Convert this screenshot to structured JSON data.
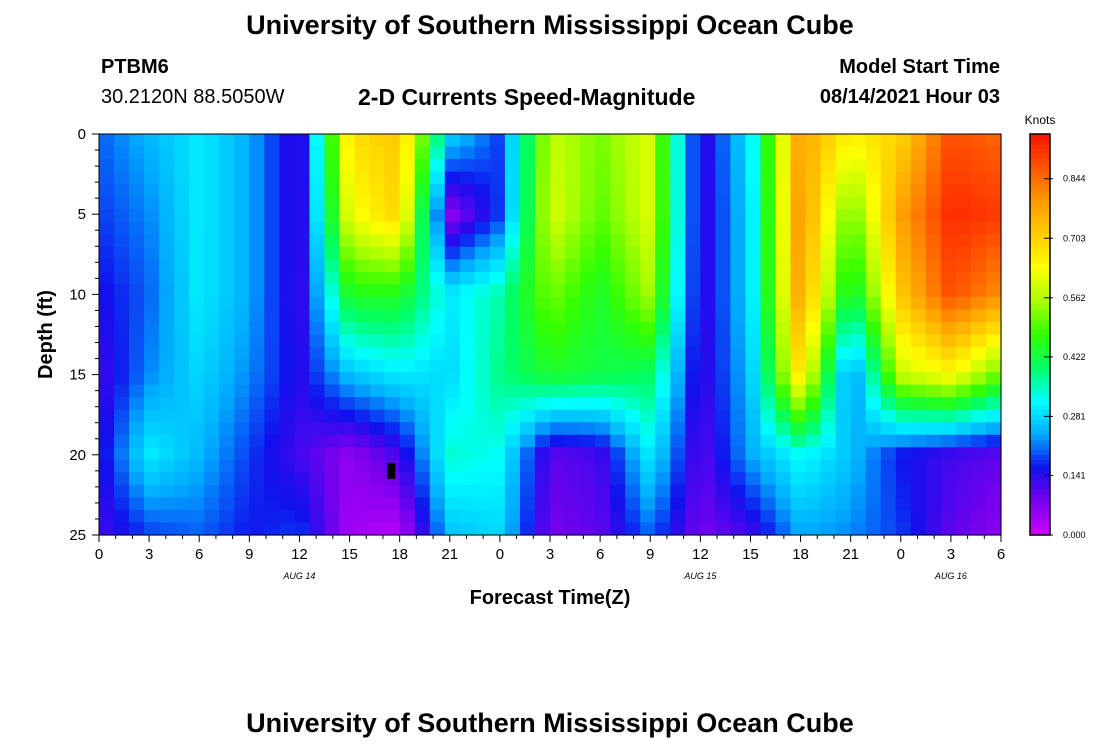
{
  "page": {
    "title_top": "University of Southern Mississippi Ocean Cube",
    "title_bottom": "University of Southern Mississippi Ocean Cube",
    "station_id": "PTBM6",
    "station_coords": "30.2120N  88.5050W",
    "plot_title": "2-D Currents Speed-Magnitude",
    "model_start_label": "Model Start Time",
    "model_start_value": "08/14/2021 Hour 03"
  },
  "colors": {
    "scale": [
      "#cc00ff",
      "#7a00ee",
      "#1010ee",
      "#00aaff",
      "#00ffff",
      "#00ff66",
      "#33ff00",
      "#aaff00",
      "#ffff00",
      "#ffcc00",
      "#ff9900",
      "#ff5500",
      "#ff1100"
    ],
    "marker": "#000000"
  },
  "chart_data": {
    "type": "heatmap",
    "title": "2-D Currents Speed-Magnitude",
    "xlabel": "Forecast Time(Z)",
    "ylabel": "Depth (ft)",
    "x_tick_labels": [
      "0",
      "3",
      "6",
      "9",
      "12",
      "15",
      "18",
      "21",
      "0",
      "3",
      "6",
      "9",
      "12",
      "15",
      "18",
      "21",
      "0",
      "3",
      "6"
    ],
    "x_range_hours_from_start": [
      0,
      54
    ],
    "y_tick_labels": [
      "0",
      "5",
      "10",
      "15",
      "20",
      "25"
    ],
    "y_ticks": [
      0,
      5,
      10,
      15,
      20,
      25
    ],
    "ylim": [
      25,
      0
    ],
    "date_labels": [
      {
        "text": "AUG 14",
        "hour": 12
      },
      {
        "text": "AUG 15",
        "hour": 36
      },
      {
        "text": "AUG 16",
        "hour": 51
      }
    ],
    "colorbar": {
      "label": "Knots",
      "ticks": [
        "0.000",
        "0.141",
        "0.281",
        "0.422",
        "0.562",
        "0.703",
        "0.844"
      ],
      "tick_values": [
        0.0,
        0.141,
        0.281,
        0.422,
        0.562,
        0.703,
        0.844
      ],
      "range": [
        0,
        0.95
      ]
    },
    "depth_levels_ft": [
      0,
      5,
      10,
      15,
      20,
      25
    ],
    "hours": [
      0,
      3,
      6,
      9,
      12,
      15,
      18,
      21,
      24,
      27,
      30,
      33,
      36,
      39,
      42,
      45,
      48,
      51,
      54
    ],
    "speed_knots": [
      [
        0.2,
        0.25,
        0.3,
        0.24,
        0.12,
        0.68,
        0.72,
        0.28,
        0.18,
        0.58,
        0.52,
        0.6,
        0.12,
        0.3,
        0.78,
        0.65,
        0.7,
        0.88,
        0.85
      ],
      [
        0.18,
        0.22,
        0.3,
        0.24,
        0.12,
        0.62,
        0.7,
        0.06,
        0.18,
        0.6,
        0.5,
        0.6,
        0.12,
        0.28,
        0.8,
        0.5,
        0.78,
        0.92,
        0.9
      ],
      [
        0.15,
        0.2,
        0.3,
        0.24,
        0.12,
        0.45,
        0.45,
        0.3,
        0.36,
        0.52,
        0.44,
        0.55,
        0.12,
        0.28,
        0.78,
        0.4,
        0.72,
        0.88,
        0.8
      ],
      [
        0.12,
        0.22,
        0.28,
        0.22,
        0.14,
        0.26,
        0.3,
        0.28,
        0.38,
        0.44,
        0.42,
        0.4,
        0.12,
        0.26,
        0.68,
        0.2,
        0.58,
        0.64,
        0.5
      ],
      [
        0.14,
        0.3,
        0.25,
        0.18,
        0.12,
        0.06,
        0.12,
        0.34,
        0.32,
        0.1,
        0.12,
        0.3,
        0.1,
        0.24,
        0.32,
        0.26,
        0.16,
        0.12,
        0.1
      ],
      [
        0.12,
        0.18,
        0.2,
        0.16,
        0.18,
        0.04,
        0.02,
        0.26,
        0.28,
        0.08,
        0.1,
        0.2,
        0.08,
        0.12,
        0.24,
        0.22,
        0.18,
        0.1,
        0.06
      ]
    ],
    "marker": {
      "hour": 17.5,
      "depth_ft": 21
    }
  }
}
